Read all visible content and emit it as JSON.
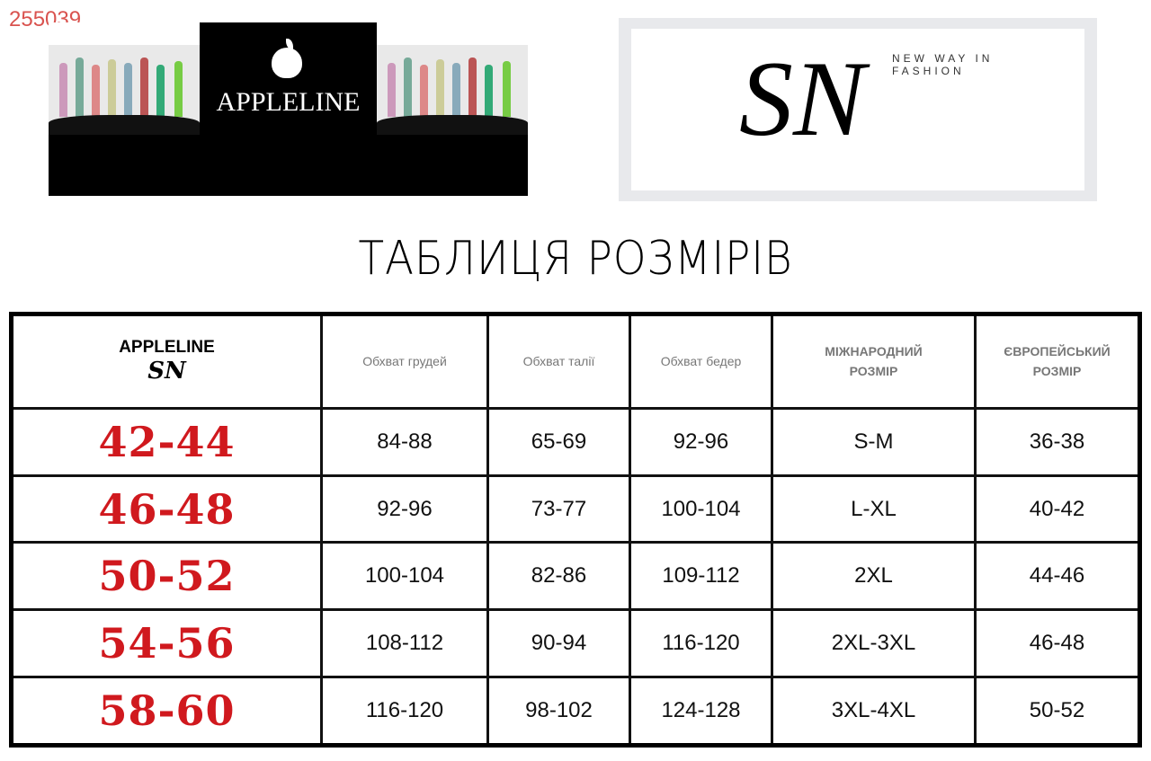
{
  "corner_id": "255039",
  "banner": {
    "brand": "APPLELINE"
  },
  "sn_logo": {
    "monogram": "SN",
    "tagline_1": "NEW WAY IN",
    "tagline_2": "FASHION"
  },
  "title": "ТАБЛИЦЯ РОЗМІРІВ",
  "table": {
    "corner_brand": "APPLELINE",
    "corner_script": "SN",
    "headers": [
      "Обхват грудей",
      "Обхват талії",
      "Обхват бедер",
      "МІЖНАРОДНИЙ РОЗМІР",
      "ЄВРОПЕЙСЬКИЙ РОЗМІР"
    ],
    "rows": [
      {
        "size": "42-44",
        "chest": "84-88",
        "waist": "65-69",
        "hips": "92-96",
        "intl": "S-M",
        "eu": "36-38"
      },
      {
        "size": "46-48",
        "chest": "92-96",
        "waist": "73-77",
        "hips": "100-104",
        "intl": "L-XL",
        "eu": "40-42"
      },
      {
        "size": "50-52",
        "chest": "100-104",
        "waist": "82-86",
        "hips": "109-112",
        "intl": "2XL",
        "eu": "44-46"
      },
      {
        "size": "54-56",
        "chest": "108-112",
        "waist": "90-94",
        "hips": "116-120",
        "intl": "2XL-3XL",
        "eu": "46-48"
      },
      {
        "size": "58-60",
        "chest": "116-120",
        "waist": "98-102",
        "hips": "124-128",
        "intl": "3XL-4XL",
        "eu": "50-52"
      }
    ]
  },
  "colors": {
    "size_red": "#d0191e",
    "corner_red": "#d9534f"
  }
}
